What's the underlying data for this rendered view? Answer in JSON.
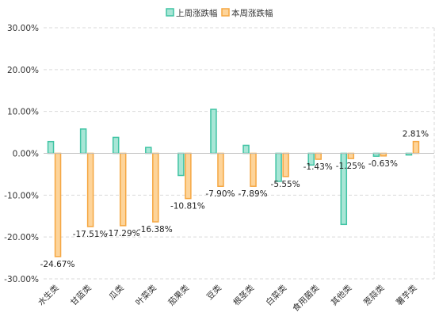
{
  "chart_data": {
    "type": "bar",
    "categories": [
      "水生类",
      "甘蓝类",
      "瓜类",
      "叶菜类",
      "茄果类",
      "豆类",
      "根茎类",
      "白菜类",
      "食用菌类",
      "其他类",
      "葱蒜类",
      "薯芋类"
    ],
    "series": [
      {
        "name": "上周涨跌幅",
        "values": [
          2.8,
          5.8,
          3.8,
          1.4,
          -5.3,
          10.5,
          1.9,
          -6.7,
          -2.8,
          -17.0,
          -0.7,
          -0.4
        ],
        "color": "#40c4a4",
        "fill": "#a8e6d6"
      },
      {
        "name": "本周涨跌幅",
        "values": [
          -24.67,
          -17.51,
          -17.29,
          -16.38,
          -10.81,
          -7.9,
          -7.89,
          -5.55,
          -1.43,
          -1.25,
          -0.63,
          2.81
        ],
        "data_labels": [
          "-24.67%",
          "-17.51%",
          "-17.29%",
          "-16.38%",
          "-10.81%",
          "-7.90%",
          "-7.89%",
          "-5.55%",
          "-1.43%",
          "-1.25%",
          "-0.63%",
          "2.81%"
        ],
        "color": "#f5a742",
        "fill": "#fdd49a"
      }
    ],
    "y_ticks": [
      "30.00%",
      "20.00%",
      "10.00%",
      "0.00%",
      "-10.00%",
      "-20.00%",
      "-30.00%"
    ],
    "ylim": [
      -30,
      30
    ],
    "grid": true,
    "legend_position": "top-center"
  }
}
